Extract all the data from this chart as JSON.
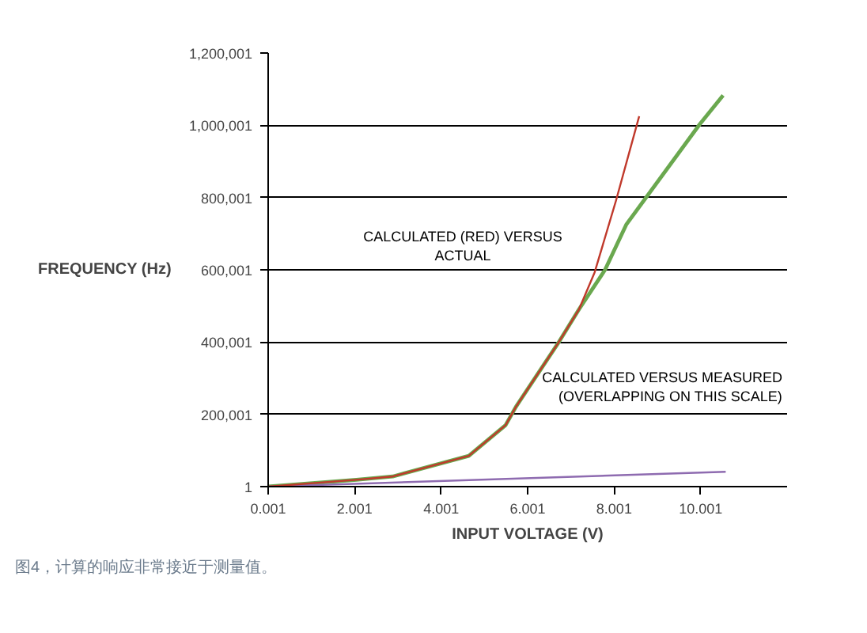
{
  "chart_data": {
    "type": "line",
    "xlabel": "INPUT VOLTAGE (V)",
    "ylabel": "FREQUENCY (Hz)",
    "xlim": [
      0.001,
      12
    ],
    "ylim": [
      1,
      1200001
    ],
    "xticks": [
      {
        "value": 0.001,
        "label": "0.001"
      },
      {
        "value": 2.001,
        "label": "2.001"
      },
      {
        "value": 4.001,
        "label": "4.001"
      },
      {
        "value": 6.001,
        "label": "6.001"
      },
      {
        "value": 8.001,
        "label": "8.001"
      },
      {
        "value": 10.001,
        "label": "10.001"
      }
    ],
    "yticks": [
      {
        "value": 1,
        "label": "1"
      },
      {
        "value": 200001,
        "label": "200,001"
      },
      {
        "value": 400001,
        "label": "400,001"
      },
      {
        "value": 600001,
        "label": "600,001"
      },
      {
        "value": 800001,
        "label": "800,001"
      },
      {
        "value": 1000001,
        "label": "1,000,001"
      },
      {
        "value": 1200001,
        "label": "1,200,001"
      }
    ],
    "grid": "y",
    "line_style": "solid",
    "series": [
      {
        "color": "#6aa84f",
        "x": [
          0.001,
          2.04,
          2.88,
          4.64,
          5.49,
          5.73,
          6.7,
          7.19,
          7.79,
          8.28,
          9.98,
          10.52
        ],
        "values": [
          1,
          19000,
          28000,
          85000,
          170000,
          221000,
          396000,
          491000,
          600000,
          725000,
          1003000,
          1083000
        ]
      },
      {
        "color": "#8e6bb0",
        "x": [
          0.001,
          10.58
        ],
        "values": [
          1,
          41000
        ]
      },
      {
        "color": "#c0392b",
        "x": [
          0.001,
          2.04,
          2.88,
          4.64,
          5.49,
          5.73,
          6.7,
          7.19,
          7.55,
          8.04,
          8.58
        ],
        "values": [
          1,
          19000,
          28000,
          85000,
          170000,
          221000,
          396000,
          491000,
          593000,
          790000,
          1025000
        ]
      }
    ],
    "annotations": [
      "CALCULATED (RED) VERSUS\nACTUAL",
      "CALCULATED VERSUS MEASURED\n(OVERLAPPING ON THIS SCALE)",
      "图4，计算的响应非常接近于测量值。"
    ]
  }
}
